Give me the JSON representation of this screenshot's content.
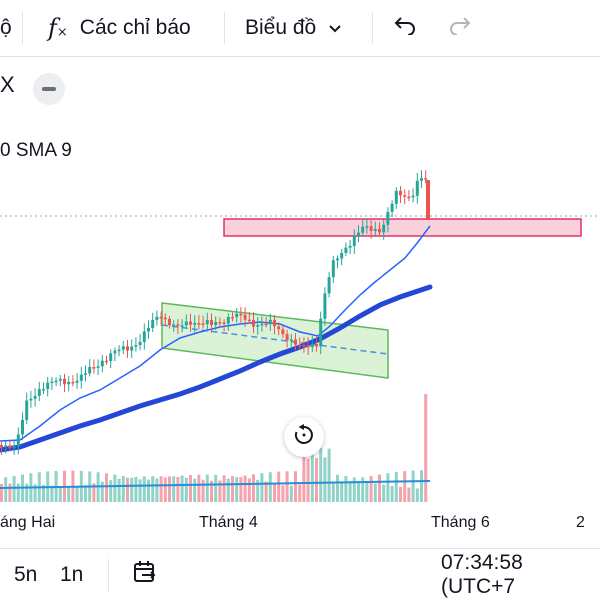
{
  "toolbar": {
    "left_fragment": "ộ",
    "indicators_icon": "fx-icon",
    "indicators_label": "Các chỉ báo",
    "chart_label": "Biểu đồ",
    "dropdown_icon": "chevron-down-icon",
    "undo_icon": "undo-icon",
    "redo_icon": "redo-icon"
  },
  "symbol": {
    "fragment": "X",
    "collapse_icon": "minus-icon"
  },
  "indicator_legend": {
    "text": "0 SMA 9"
  },
  "xaxis": {
    "labels": [
      "áng Hai",
      "Tháng 4",
      "Tháng 6",
      "2"
    ]
  },
  "reset_icon": "reset-icon",
  "bottom": {
    "interval_5d": "5n",
    "interval_1d": "1n",
    "goto_date_icon": "calendar-range-icon",
    "clock": "07:34:58 (UTC+7"
  },
  "colors": {
    "up": "#26a69a",
    "down": "#ef5350",
    "sma_fast": "#2962ff",
    "sma_slow": "#2447d6",
    "resistance_fill": "#f8c9d4",
    "resistance_stroke": "#e0316e",
    "channel_fill": "#d6f0cf",
    "channel_stroke": "#5cb85c"
  }
}
